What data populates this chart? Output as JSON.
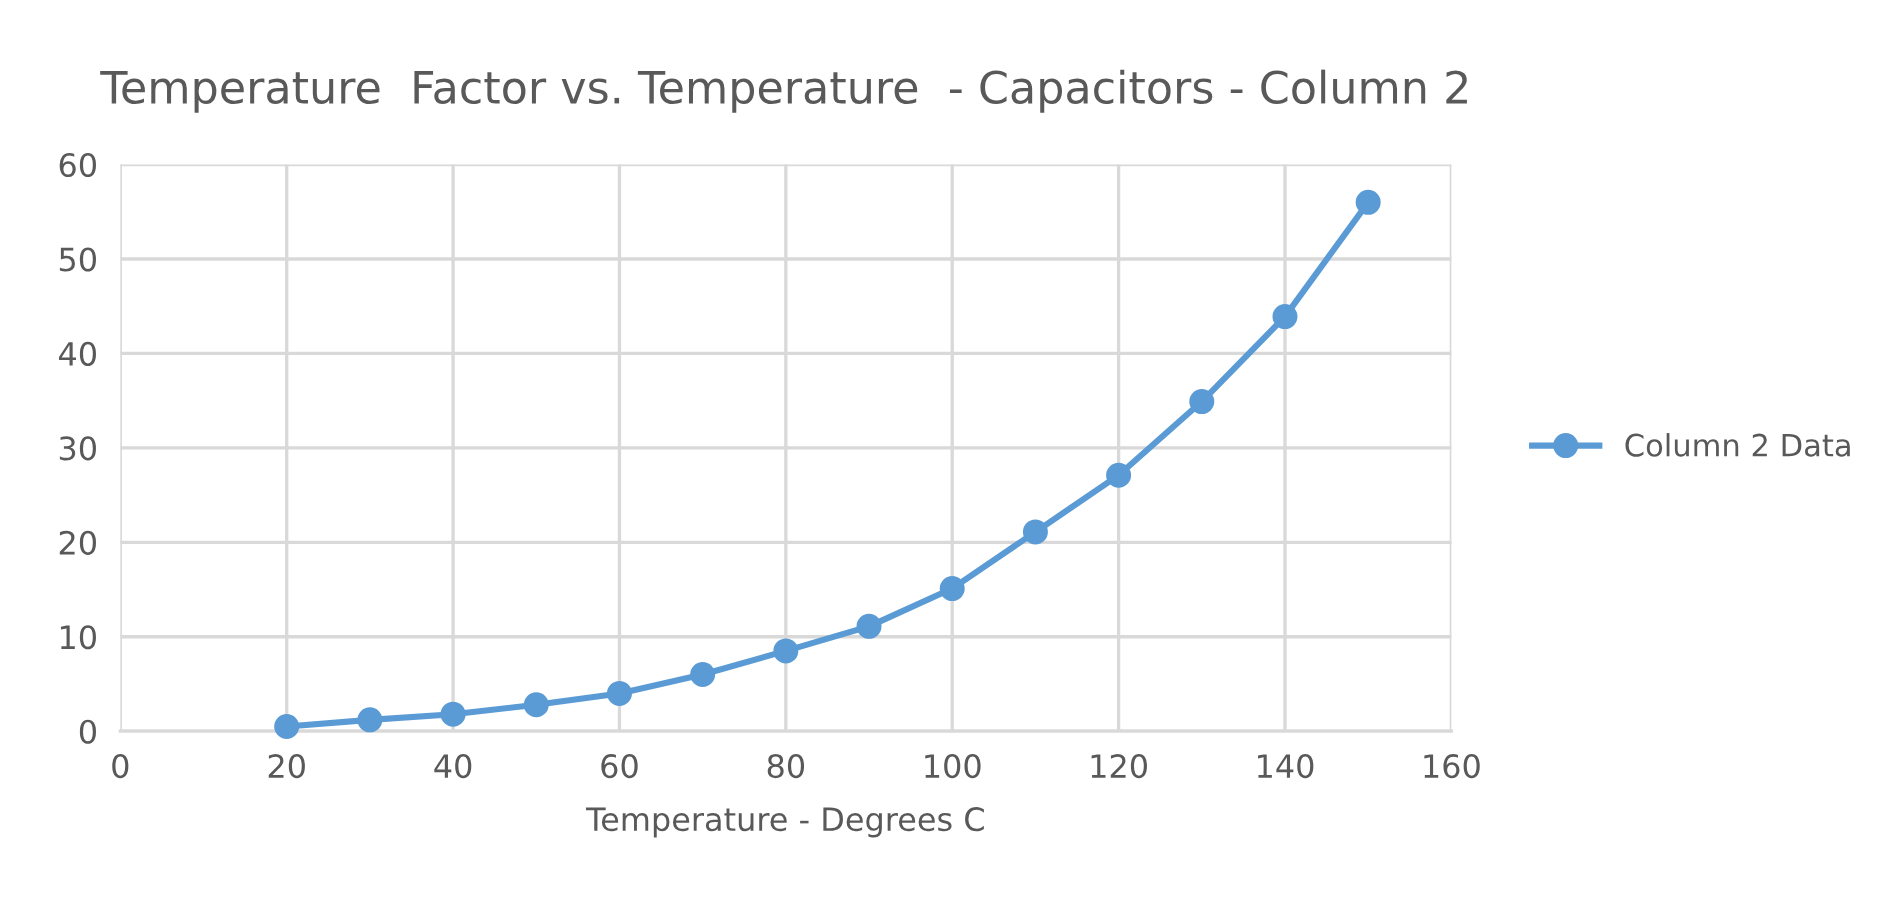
{
  "chart_data": {
    "type": "line",
    "title": "Temperature  Factor vs. Temperature  - Capacitors - Column 2",
    "xlabel": "Temperature - Degrees C",
    "x": [
      20,
      30,
      40,
      50,
      60,
      70,
      80,
      90,
      100,
      110,
      120,
      130,
      140,
      150
    ],
    "series": [
      {
        "name": "Column 2 Data",
        "color": "#5b9bd5",
        "values": [
          0.5,
          1.2,
          1.8,
          2.8,
          4.0,
          6.0,
          8.5,
          11.1,
          15.1,
          21.1,
          27.1,
          34.9,
          43.9,
          56
        ]
      }
    ],
    "xlim": [
      0,
      160
    ],
    "xticks": [
      0,
      20,
      40,
      60,
      80,
      100,
      120,
      140,
      160
    ],
    "ylim": [
      0,
      60
    ],
    "yticks": [
      0,
      10,
      20,
      30,
      40,
      50,
      60
    ],
    "grid": true,
    "legend": "right",
    "marker": "circle",
    "line_style": "solid"
  }
}
